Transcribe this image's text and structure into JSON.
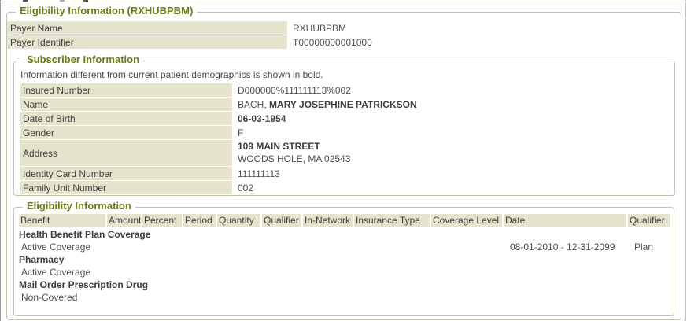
{
  "colors": {
    "accent_green": "#68800a",
    "label_background": "#e6e3cd",
    "fieldset_border": "#c5c3ab"
  },
  "outer": {
    "legend": "Eligibility Information (RXHUBPBM)"
  },
  "payer_rows": [
    {
      "label": "Payer Name",
      "value": "RXHUBPBM"
    },
    {
      "label": "Payer Identifier",
      "value": "T00000000001000"
    }
  ],
  "subscriber": {
    "legend": "Subscriber Information",
    "note": "Information different from current patient demographics is shown in bold.",
    "rows": [
      {
        "label": "Insured Number",
        "value": "D000000%111111113%002"
      },
      {
        "label": "Name",
        "value_normal": "BACH, ",
        "value_bold": "MARY JOSEPHINE PATRICKSON"
      },
      {
        "label": "Date of Birth",
        "value_bold": "06-03-1954"
      },
      {
        "label": "Gender",
        "value": "F"
      },
      {
        "label": "Address",
        "value_bold": "109 MAIN STREET",
        "value_line2": "WOODS HOLE, MA 02543"
      },
      {
        "label": "Identity Card Number",
        "value": "111111113"
      },
      {
        "label": "Family Unit Number",
        "value": "002"
      }
    ]
  },
  "eligibility": {
    "legend": "Eligibility Information",
    "columns": [
      "Benefit",
      "Amount",
      "Percent",
      "Period",
      "Quantity",
      "Qualifier",
      "In-Network",
      "Insurance Type",
      "Coverage Level",
      "Date",
      "Qualifier"
    ],
    "rows": [
      {
        "benefit": "Health Benefit Plan Coverage",
        "date": "",
        "qualifier": ""
      },
      {
        "benefit": "Active Coverage",
        "date": "08-01-2010 - 12-31-2099",
        "qualifier": "Plan"
      },
      {
        "benefit": "Pharmacy",
        "date": "",
        "qualifier": ""
      },
      {
        "benefit": "Active Coverage",
        "date": "",
        "qualifier": ""
      },
      {
        "benefit": "Mail Order Prescription Drug",
        "date": "",
        "qualifier": ""
      },
      {
        "benefit": "Non-Covered",
        "date": "",
        "qualifier": ""
      }
    ]
  }
}
